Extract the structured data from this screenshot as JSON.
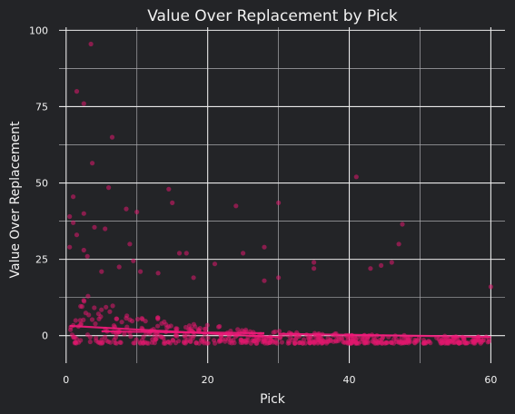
{
  "chart_data": {
    "type": "scatter",
    "title": "Value Over Replacement by Pick",
    "xlabel": "Pick",
    "ylabel": "Value Over Replacement",
    "xlim": [
      -1,
      62
    ],
    "ylim": [
      -9,
      101
    ],
    "x_ticks": [
      0,
      20,
      40,
      60
    ],
    "x_minor_ticks": [
      10,
      30,
      50
    ],
    "y_ticks": [
      0,
      25,
      50,
      75,
      100
    ],
    "y_minor_ticks": [
      12.5,
      37.5,
      62.5,
      87.5
    ],
    "grid": true,
    "point_color": "#e0186e",
    "trend_color": "#f0197a",
    "background_color": "#232427",
    "outliers": [
      {
        "x": 3.5,
        "y": 95.5
      },
      {
        "x": 1.5,
        "y": 80
      },
      {
        "x": 2.5,
        "y": 76
      },
      {
        "x": 6.5,
        "y": 65
      },
      {
        "x": 3.7,
        "y": 56.5
      },
      {
        "x": 41,
        "y": 52
      },
      {
        "x": 6,
        "y": 48.5
      },
      {
        "x": 14.5,
        "y": 48
      },
      {
        "x": 1,
        "y": 45.5
      },
      {
        "x": 15,
        "y": 43.5
      },
      {
        "x": 30,
        "y": 43.5
      },
      {
        "x": 24,
        "y": 42.5
      },
      {
        "x": 8.5,
        "y": 41.5
      },
      {
        "x": 10,
        "y": 40.5
      },
      {
        "x": 2.5,
        "y": 40
      },
      {
        "x": 0.5,
        "y": 39
      },
      {
        "x": 1,
        "y": 37
      },
      {
        "x": 47.5,
        "y": 36.5
      },
      {
        "x": 4,
        "y": 35.5
      },
      {
        "x": 5.5,
        "y": 35
      },
      {
        "x": 1.5,
        "y": 33
      },
      {
        "x": 9,
        "y": 30
      },
      {
        "x": 47,
        "y": 30
      },
      {
        "x": 28,
        "y": 29
      },
      {
        "x": 0.5,
        "y": 29
      },
      {
        "x": 2.5,
        "y": 28
      },
      {
        "x": 16,
        "y": 27
      },
      {
        "x": 17,
        "y": 27
      },
      {
        "x": 25,
        "y": 27
      },
      {
        "x": 3,
        "y": 26
      },
      {
        "x": 9.5,
        "y": 24.5
      },
      {
        "x": 35,
        "y": 24
      },
      {
        "x": 46,
        "y": 24
      },
      {
        "x": 21,
        "y": 23.5
      },
      {
        "x": 44.5,
        "y": 23
      },
      {
        "x": 35,
        "y": 22
      },
      {
        "x": 5,
        "y": 21
      },
      {
        "x": 10.5,
        "y": 21
      },
      {
        "x": 43,
        "y": 22
      },
      {
        "x": 13,
        "y": 20.5
      },
      {
        "x": 7.5,
        "y": 22.5
      },
      {
        "x": 60,
        "y": 16
      },
      {
        "x": 30,
        "y": 19
      },
      {
        "x": 18,
        "y": 19
      },
      {
        "x": 28,
        "y": 18
      }
    ],
    "cluster": {
      "count": 560,
      "x_range": [
        0.5,
        60
      ],
      "decay": 0.07
    },
    "trend_segments": [
      {
        "x": [
          0.5,
          30
        ],
        "y": [
          3.2,
          -0.5
        ]
      },
      {
        "x": [
          30,
          60
        ],
        "y": [
          0.6,
          -0.4
        ]
      },
      {
        "x": [
          5,
          28
        ],
        "y": [
          1.4,
          0.8
        ]
      }
    ]
  }
}
